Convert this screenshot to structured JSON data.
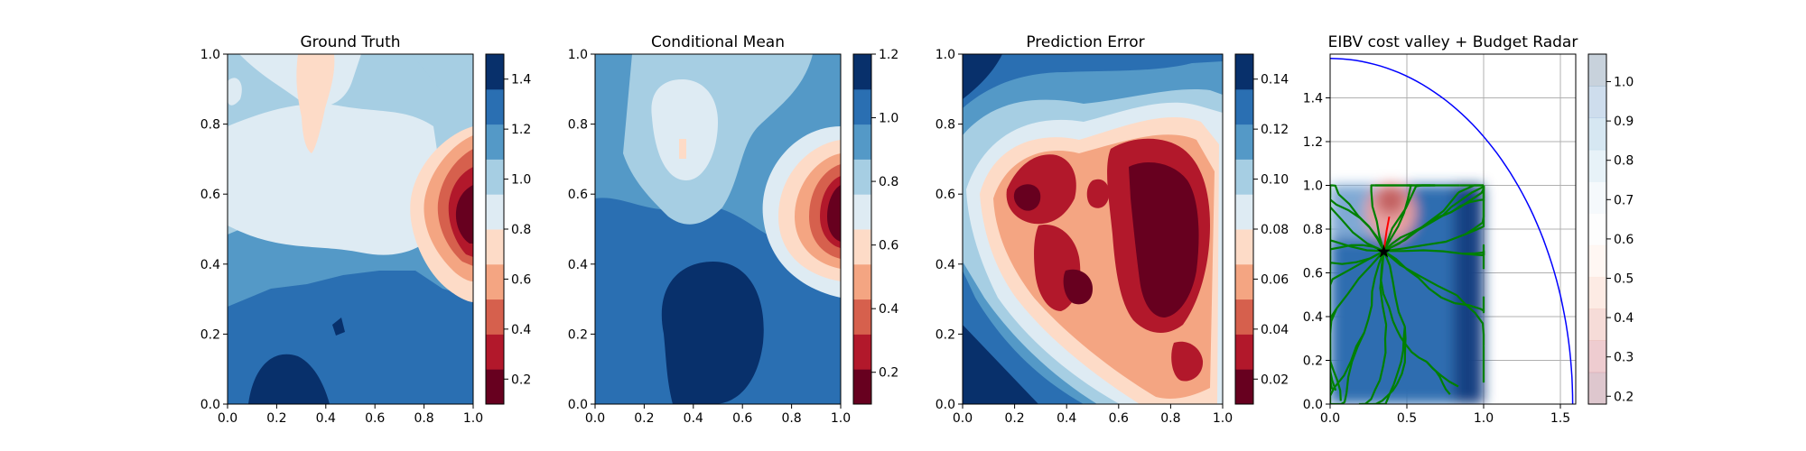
{
  "colors": {
    "rdbu": [
      "#67001f",
      "#b2182b",
      "#d6604d",
      "#f4a582",
      "#fddbc7",
      "#f7f7f7",
      "#d1e5f0",
      "#92c5de",
      "#4393c3",
      "#2166ac",
      "#053061"
    ],
    "field_levels": [
      "#67001f",
      "#b2182b",
      "#d6604d",
      "#f4a582",
      "#fddbc7",
      "#deebf3",
      "#a6cee3",
      "#5499c7",
      "#2a6fb2",
      "#08306b"
    ],
    "path": "#008000",
    "radar": "#0000ff",
    "chosen_path": "#ff0000",
    "agent_marker": "#000000",
    "grid": "#b0b0b0"
  },
  "chart_data": [
    {
      "type": "heatmap",
      "title": "Ground Truth",
      "xlim": [
        0.0,
        1.0
      ],
      "ylim": [
        0.0,
        1.0
      ],
      "xticks": [
        "0.0",
        "0.2",
        "0.4",
        "0.6",
        "0.8",
        "1.0"
      ],
      "yticks": [
        "0.0",
        "0.2",
        "0.4",
        "0.6",
        "0.8",
        "1.0"
      ],
      "colorbar": {
        "range": [
          0.1,
          1.5
        ],
        "ticks": [
          "0.2",
          "0.4",
          "0.6",
          "0.8",
          "1.0",
          "1.2",
          "1.4"
        ],
        "tick_values": [
          0.2,
          0.4,
          0.6,
          0.8,
          1.0,
          1.2,
          1.4
        ]
      },
      "grid": false
    },
    {
      "type": "heatmap",
      "title": "Conditional Mean",
      "xlim": [
        0.0,
        1.0
      ],
      "ylim": [
        0.0,
        1.0
      ],
      "xticks": [
        "0.0",
        "0.2",
        "0.4",
        "0.6",
        "0.8",
        "1.0"
      ],
      "yticks": [
        "0.0",
        "0.2",
        "0.4",
        "0.6",
        "0.8",
        "1.0"
      ],
      "colorbar": {
        "range": [
          0.1,
          1.2
        ],
        "ticks": [
          "0.2",
          "0.4",
          "0.6",
          "0.8",
          "1.0",
          "1.2"
        ],
        "tick_values": [
          0.2,
          0.4,
          0.6,
          0.8,
          1.0,
          1.2
        ]
      },
      "grid": false
    },
    {
      "type": "heatmap",
      "title": "Prediction Error",
      "xlim": [
        0.0,
        1.0
      ],
      "ylim": [
        0.0,
        1.0
      ],
      "xticks": [
        "0.0",
        "0.2",
        "0.4",
        "0.6",
        "0.8",
        "1.0"
      ],
      "yticks": [
        "0.0",
        "0.2",
        "0.4",
        "0.6",
        "0.8",
        "1.0"
      ],
      "colorbar": {
        "range": [
          0.01,
          0.15
        ],
        "ticks": [
          "0.02",
          "0.04",
          "0.06",
          "0.08",
          "0.10",
          "0.12",
          "0.14"
        ],
        "tick_values": [
          0.02,
          0.04,
          0.06,
          0.08,
          0.1,
          0.12,
          0.14
        ]
      },
      "grid": false
    },
    {
      "type": "scatter",
      "title": "EIBV cost valley + Budget Radar",
      "xlim": [
        0.0,
        1.6
      ],
      "ylim": [
        0.0,
        1.6
      ],
      "xticks": [
        "0.0",
        "0.5",
        "1.0",
        "1.5"
      ],
      "xtick_values": [
        0.0,
        0.5,
        1.0,
        1.5
      ],
      "yticks": [
        "0.0",
        "0.2",
        "0.4",
        "0.6",
        "0.8",
        "1.0",
        "1.2",
        "1.4"
      ],
      "ytick_values": [
        0.0,
        0.2,
        0.4,
        0.6,
        0.8,
        1.0,
        1.2,
        1.4
      ],
      "grid": true,
      "cost_field_extent": {
        "x": [
          0.0,
          1.0
        ],
        "y": [
          0.0,
          1.0
        ]
      },
      "agent_position": {
        "x": 0.35,
        "y": 0.7
      },
      "budget_radar_radius": 1.58,
      "colorbar": {
        "range": [
          0.18,
          1.07
        ],
        "ticks": [
          "0.2",
          "0.3",
          "0.4",
          "0.5",
          "0.6",
          "0.7",
          "0.8",
          "0.9",
          "1.0"
        ],
        "tick_values": [
          0.2,
          0.3,
          0.4,
          0.5,
          0.6,
          0.7,
          0.8,
          0.9,
          1.0
        ]
      }
    }
  ]
}
